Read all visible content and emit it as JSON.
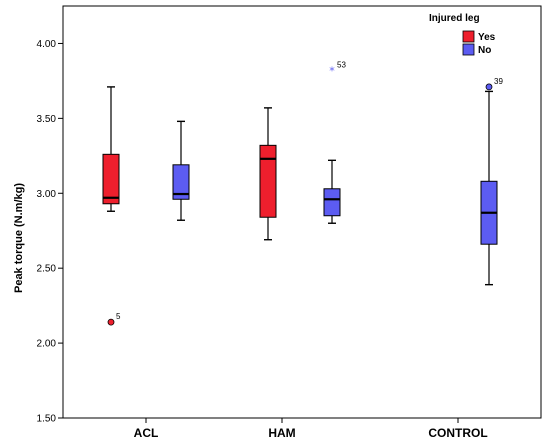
{
  "chart_data": {
    "type": "boxplot",
    "ylabel": "Peak torque (N.m/kg)",
    "ylim": [
      1.5,
      4.25
    ],
    "yticks": [
      "1.50",
      "2.00",
      "2.50",
      "3.00",
      "3.50",
      "4.00"
    ],
    "categories": [
      "ACL",
      "HAM",
      "CONTROL"
    ],
    "legend": {
      "title": "Injured leg",
      "position": "top-right",
      "entries": [
        {
          "name": "Yes",
          "color": "#ee1f2d"
        },
        {
          "name": "No",
          "color": "#5c5cf2"
        }
      ]
    },
    "boxes": [
      {
        "category": "ACL",
        "group": "Yes",
        "min": 2.88,
        "q1": 2.93,
        "median": 2.97,
        "q3": 3.26,
        "max": 3.71,
        "outliers": [
          {
            "value": 2.14,
            "label": "5",
            "marker": "circle"
          }
        ]
      },
      {
        "category": "ACL",
        "group": "No",
        "min": 2.82,
        "q1": 2.96,
        "median": 2.995,
        "q3": 3.19,
        "max": 3.48,
        "outliers": []
      },
      {
        "category": "HAM",
        "group": "Yes",
        "min": 2.69,
        "q1": 2.84,
        "median": 3.23,
        "q3": 3.32,
        "max": 3.57,
        "outliers": []
      },
      {
        "category": "HAM",
        "group": "No",
        "min": 2.8,
        "q1": 2.85,
        "median": 2.96,
        "q3": 3.03,
        "max": 3.22,
        "outliers": [
          {
            "value": 3.82,
            "label": "53",
            "marker": "star"
          }
        ]
      },
      {
        "category": "CONTROL",
        "group": "No",
        "min": 2.39,
        "q1": 2.66,
        "median": 2.87,
        "q3": 3.08,
        "max": 3.68,
        "outliers": [
          {
            "value": 3.71,
            "label": "39",
            "marker": "circle"
          }
        ]
      }
    ],
    "grid": false
  }
}
